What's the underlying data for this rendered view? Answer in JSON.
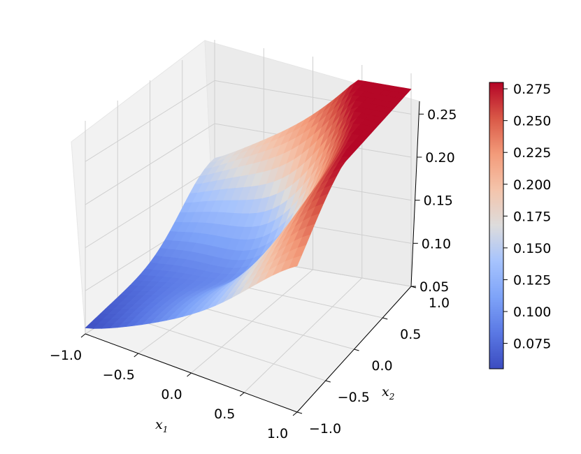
{
  "chart_data": {
    "type": "surface3d",
    "title": "",
    "colormap": "coolwarm",
    "colors": {
      "low": "#3b4cc0",
      "mid": "#dddddd",
      "high": "#b40426"
    },
    "x": {
      "label": "x",
      "sub": "1",
      "ticks": [
        "−1.0",
        "−0.5",
        "0.0",
        "0.5",
        "1.0"
      ],
      "range": [
        -1.0,
        1.0
      ]
    },
    "y": {
      "label": "x",
      "sub": "2",
      "ticks": [
        "−1.0",
        "−0.5",
        "0.0",
        "0.5",
        "1.0"
      ],
      "range": [
        -1.0,
        1.0
      ]
    },
    "z": {
      "ticks": [
        "0.05",
        "0.10",
        "0.15",
        "0.20",
        "0.25"
      ],
      "range": [
        0.05,
        0.28
      ]
    },
    "colorbar": {
      "ticks": [
        "0.075",
        "0.100",
        "0.125",
        "0.150",
        "0.175",
        "0.200",
        "0.225",
        "0.250",
        "0.275"
      ],
      "range": [
        0.055,
        0.28
      ]
    },
    "surface": {
      "function": "saddle-like: minimum at x1=-1,x2=-1 edge; peaks near far corners",
      "z_min": 0.057,
      "z_max": 0.279
    }
  }
}
